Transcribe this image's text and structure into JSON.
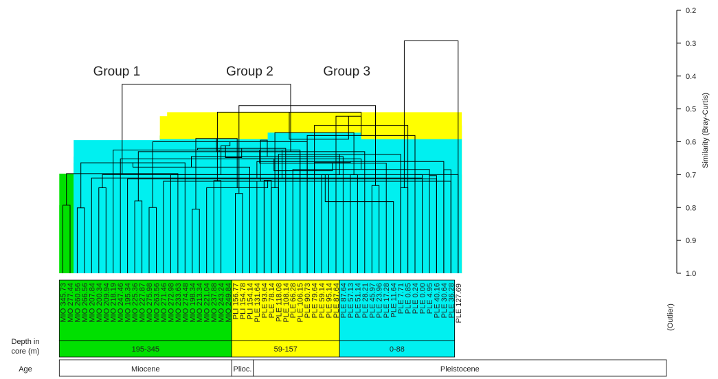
{
  "chart_data": {
    "type": "dendrogram",
    "ylabel": "Similarity (Bray-Curtis)",
    "y_ticks": [
      "0.2",
      "0.3",
      "0.4",
      "0.5",
      "0.6",
      "0.7",
      "0.8",
      "0.9",
      "1.0"
    ],
    "ylim": [
      0.2,
      1.0
    ],
    "y_inverted": true,
    "group_titles": [
      {
        "text": "Group 1",
        "leaf": 7.5
      },
      {
        "text": "Group 2",
        "leaf": 26
      },
      {
        "text": "Group 3",
        "leaf": 39.5
      }
    ],
    "leaves": [
      {
        "label": "MIO 345.73",
        "group": 1
      },
      {
        "label": "MIO 277.44",
        "group": 1
      },
      {
        "label": "MIO 260.56",
        "group": 1
      },
      {
        "label": "MIO 266.56",
        "group": 1
      },
      {
        "label": "MIO 207.84",
        "group": 1
      },
      {
        "label": "MIO 200.34",
        "group": 1
      },
      {
        "label": "MIO 209.94",
        "group": 1
      },
      {
        "label": "MIO 218.19",
        "group": 1
      },
      {
        "label": "MIO 247.46",
        "group": 1
      },
      {
        "label": "MIO 195.34",
        "group": 1
      },
      {
        "label": "MIO 225.36",
        "group": 1
      },
      {
        "label": "MIO 227.87",
        "group": 1
      },
      {
        "label": "MIO 275.98",
        "group": 1
      },
      {
        "label": "MIO 263.56",
        "group": 1
      },
      {
        "label": "MIO 271.46",
        "group": 1
      },
      {
        "label": "MIO 272.98",
        "group": 1
      },
      {
        "label": "MIO 233.63",
        "group": 1
      },
      {
        "label": "MIO 274.48",
        "group": 1
      },
      {
        "label": "MIO 198.34",
        "group": 1
      },
      {
        "label": "MIO 213.34",
        "group": 1
      },
      {
        "label": "MIO 221.04",
        "group": 1
      },
      {
        "label": "MIO 237.88",
        "group": 1
      },
      {
        "label": "MIO 243.24",
        "group": 1
      },
      {
        "label": "MIO 249.84",
        "group": 1
      },
      {
        "label": "PLI 156.77",
        "group": 2
      },
      {
        "label": "PLI 154.78",
        "group": 2
      },
      {
        "label": "PLI 154.14",
        "group": 2
      },
      {
        "label": "PLE 131.64",
        "group": 2
      },
      {
        "label": "PLE 93.64",
        "group": 2
      },
      {
        "label": "PLE 78.14",
        "group": 2
      },
      {
        "label": "PLE 118.08",
        "group": 2
      },
      {
        "label": "PLE 108.14",
        "group": 2
      },
      {
        "label": "PLE 66.28",
        "group": 2
      },
      {
        "label": "PLE 106.15",
        "group": 2
      },
      {
        "label": "PLE 90.73",
        "group": 2
      },
      {
        "label": "PLE 79.64",
        "group": 2
      },
      {
        "label": "PLE 59.14",
        "group": 2
      },
      {
        "label": "PLE 95.14",
        "group": 2
      },
      {
        "label": "PLE 87.64",
        "group": 2
      },
      {
        "label": "PLE 87.64",
        "group": 3
      },
      {
        "label": "PLE 57.13",
        "group": 3
      },
      {
        "label": "PLE 51.14",
        "group": 3
      },
      {
        "label": "PLE 28.21",
        "group": 3
      },
      {
        "label": "PLE 45.97",
        "group": 3
      },
      {
        "label": "PLE 23.96",
        "group": 3
      },
      {
        "label": "PLE 17.28",
        "group": 3
      },
      {
        "label": "PLE 11.64",
        "group": 3
      },
      {
        "label": "PLE 7.71",
        "group": 3
      },
      {
        "label": "PLE 0.85",
        "group": 3
      },
      {
        "label": "PLE 0.24",
        "group": 3
      },
      {
        "label": "PLE 0.00",
        "group": 3
      },
      {
        "label": "PLE 4.95",
        "group": 3
      },
      {
        "label": "PLE 40.16",
        "group": 3
      },
      {
        "label": "PLE 30.64",
        "group": 3
      },
      {
        "label": "PLE 36.28",
        "group": 3
      },
      {
        "label": "PLE 127.69",
        "group": 0
      }
    ],
    "outlier_note": "(Outlier)",
    "group_colors": {
      "1": "#00e000",
      "2": "#ffff00",
      "3": "#00f0f0",
      "root": "#000000"
    },
    "row_labels": {
      "depth": "Depth in\ncore (m)",
      "age": "Age"
    },
    "depth_bands": [
      {
        "text": "195-345",
        "from": 0,
        "to": 23,
        "color": "#00e000"
      },
      {
        "text": "59-157",
        "from": 24,
        "to": 38,
        "color": "#ffff00"
      },
      {
        "text": "0-88",
        "from": 39,
        "to": 54,
        "color": "#00f0f0"
      }
    ],
    "age_bands": [
      {
        "text": "Miocene",
        "from": 0,
        "to": 23
      },
      {
        "text": "Plioc.",
        "from": 24,
        "to": 26
      },
      {
        "text": "Pleistocene",
        "from": 27,
        "to": 55
      }
    ],
    "links": [
      {
        "l": 0,
        "r": 1,
        "h": 0.793,
        "c": "1"
      },
      {
        "l": 2,
        "r": 3,
        "h": 0.801,
        "c": "1"
      },
      {
        "l": 28,
        "r": 29,
        "h": 0.717,
        "c": "1"
      },
      {
        "l": 47,
        "r": 30,
        "h": 0.638,
        "c": "1"
      },
      {
        "l": 5,
        "r": 6,
        "h": 0.74,
        "c": "1"
      },
      {
        "l": 4,
        "r": 50,
        "h": 0.71,
        "c": "1"
      },
      {
        "l": 51,
        "r": 32,
        "h": 0.684,
        "c": "1"
      },
      {
        "l": 10,
        "r": 11,
        "h": 0.78,
        "c": "1"
      },
      {
        "l": 9,
        "r": 52,
        "h": 0.713,
        "c": "1"
      },
      {
        "l": 12,
        "r": 13,
        "h": 0.8,
        "c": "1"
      },
      {
        "l": 14,
        "r": 54,
        "h": 0.72,
        "c": "1"
      },
      {
        "l": 55,
        "r": 15,
        "h": 0.7,
        "c": "1"
      },
      {
        "l": 56,
        "r": 16,
        "h": 0.697,
        "c": "1"
      },
      {
        "l": 57,
        "r": 17,
        "h": 0.664,
        "c": "1"
      },
      {
        "l": 18,
        "r": 19,
        "h": 0.805,
        "c": "1"
      },
      {
        "l": 58,
        "r": 20,
        "h": 0.74,
        "c": "1"
      },
      {
        "l": 21,
        "r": 22,
        "h": 0.718,
        "c": "1"
      },
      {
        "l": 59,
        "r": 60,
        "h": 0.7,
        "c": "1"
      },
      {
        "l": 53,
        "r": 61,
        "h": 0.66,
        "c": "1"
      },
      {
        "l": 62,
        "r": 8,
        "h": 0.652,
        "c": "1"
      },
      {
        "l": 63,
        "r": 33,
        "h": 0.63,
        "c": "1"
      },
      {
        "l": 7,
        "r": 64,
        "h": 0.625,
        "c": "1"
      },
      {
        "l": 65,
        "r": 34,
        "h": 0.6,
        "c": "1"
      },
      {
        "l": 49,
        "r": 66,
        "h": 0.581,
        "c": "1"
      },
      {
        "l": 48,
        "r": 67,
        "h": 0.55,
        "c": "1"
      },
      {
        "l": 24,
        "r": 25,
        "h": 0.757,
        "c": "2"
      },
      {
        "l": 69,
        "r": 26,
        "h": 0.677,
        "c": "2"
      },
      {
        "l": 27,
        "r": 28,
        "h": 0.72,
        "c": "2"
      },
      {
        "l": 70,
        "r": 71,
        "h": 0.59,
        "c": "2"
      },
      {
        "l": 29,
        "r": 30,
        "h": 0.74,
        "c": "2"
      },
      {
        "l": 36,
        "r": 37,
        "h": 0.7,
        "c": "2"
      },
      {
        "l": 35,
        "r": 74,
        "h": 0.663,
        "c": "2"
      },
      {
        "l": 34,
        "r": 75,
        "h": 0.652,
        "c": "2"
      },
      {
        "l": 33,
        "r": 76,
        "h": 0.625,
        "c": "2"
      },
      {
        "l": 31,
        "r": 77,
        "h": 0.62,
        "c": "2"
      },
      {
        "l": 73,
        "r": 78,
        "h": 0.612,
        "c": "2"
      },
      {
        "l": 79,
        "r": 38,
        "h": 0.522,
        "c": "2"
      },
      {
        "l": 72,
        "r": 80,
        "h": 0.51,
        "c": "2"
      },
      {
        "l": 40,
        "r": 41,
        "h": 0.7,
        "c": "3"
      },
      {
        "l": 39,
        "r": 82,
        "h": 0.645,
        "c": "3"
      },
      {
        "l": 43,
        "r": 44,
        "h": 0.733,
        "c": "3"
      },
      {
        "l": 42,
        "r": 84,
        "h": 0.63,
        "c": "3"
      },
      {
        "l": 47,
        "r": 48,
        "h": 0.74,
        "c": "3"
      },
      {
        "l": 46,
        "r": 86,
        "h": 0.782,
        "c": "3"
      },
      {
        "l": 49,
        "r": 50,
        "h": 0.7,
        "c": "3"
      },
      {
        "l": 87,
        "r": 88,
        "h": 0.688,
        "c": "3"
      },
      {
        "l": 45,
        "r": 89,
        "h": 0.665,
        "c": "3"
      },
      {
        "l": 51,
        "r": 52,
        "h": 0.703,
        "c": "3"
      },
      {
        "l": 90,
        "r": 91,
        "h": 0.648,
        "c": "3"
      },
      {
        "l": 53,
        "r": 54,
        "h": 0.685,
        "c": "3"
      },
      {
        "l": 92,
        "r": 93,
        "h": 0.592,
        "c": "3"
      },
      {
        "l": 85,
        "r": 94,
        "h": 0.572,
        "c": "3"
      },
      {
        "l": 83,
        "r": 95,
        "h": 0.595,
        "c": "3"
      },
      {
        "l": 81,
        "r": 96,
        "h": 0.49,
        "c": "root"
      },
      {
        "l": 68,
        "r": 97,
        "h": 0.425,
        "c": "root"
      },
      {
        "l": 98,
        "r": 55,
        "h": 0.293,
        "c": "root"
      }
    ]
  }
}
